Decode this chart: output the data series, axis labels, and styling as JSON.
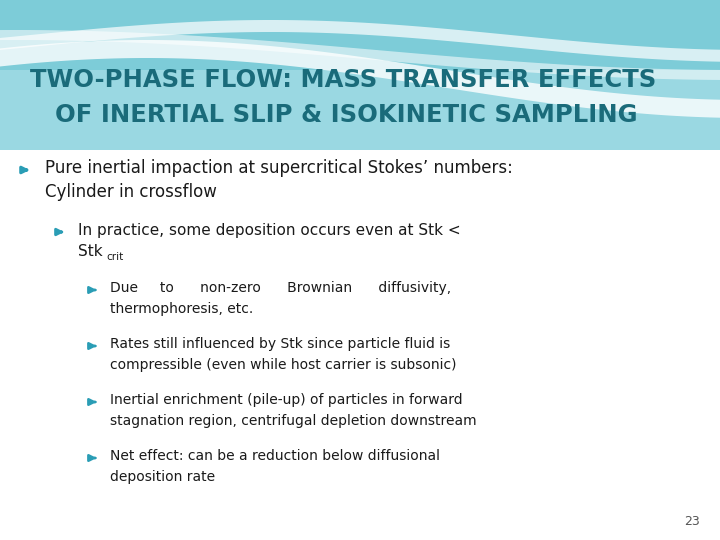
{
  "title_line1": "TWO-PHASE FLOW: MASS TRANSFER EFFECTS",
  "title_line2": "OF INERTIAL SLIP & ISOKINETIC SAMPLING",
  "title_color": "#1a6b7a",
  "slide_bg": "#f0f8fa",
  "text_color": "#1a1a1a",
  "bullet_color": "#2a9db5",
  "page_number": "23",
  "figsize": [
    7.2,
    5.4
  ],
  "dpi": 100
}
